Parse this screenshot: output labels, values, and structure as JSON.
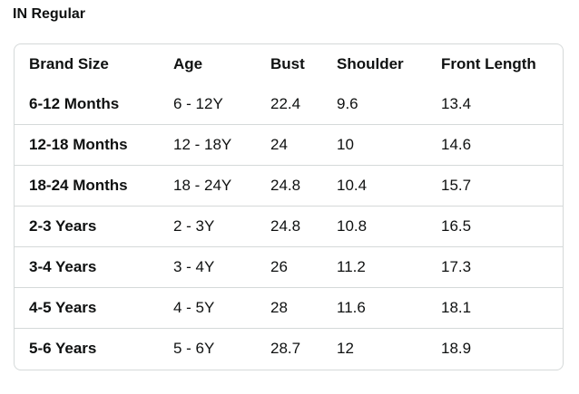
{
  "title": "IN Regular",
  "table": {
    "headers": [
      "Brand Size",
      "Age",
      "Bust",
      "Shoulder",
      "Front Length"
    ],
    "rows": [
      [
        "6-12 Months",
        "6 - 12Y",
        "22.4",
        "9.6",
        "13.4"
      ],
      [
        "12-18 Months",
        "12 - 18Y",
        "24",
        "10",
        "14.6"
      ],
      [
        "18-24 Months",
        "18 - 24Y",
        "24.8",
        "10.4",
        "15.7"
      ],
      [
        "2-3 Years",
        "2 - 3Y",
        "24.8",
        "10.8",
        "16.5"
      ],
      [
        "3-4 Years",
        "3 - 4Y",
        "26",
        "11.2",
        "17.3"
      ],
      [
        "4-5 Years",
        "4 - 5Y",
        "28",
        "11.6",
        "18.1"
      ],
      [
        "5-6 Years",
        "5 - 6Y",
        "28.7",
        "12",
        "18.9"
      ]
    ]
  }
}
